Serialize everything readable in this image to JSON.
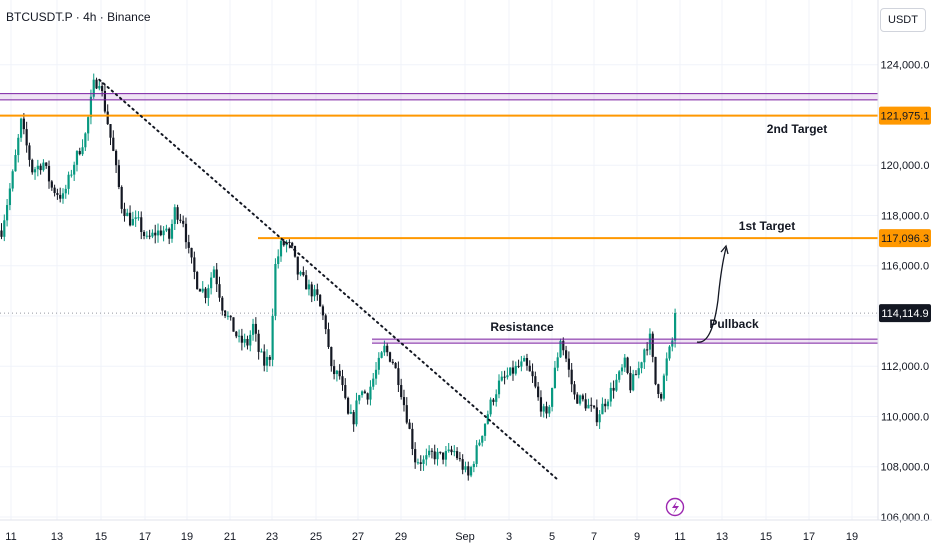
{
  "symbol": "BTCUSDT.P · 4h · Binance",
  "currency": "USDT",
  "chart_data": {
    "type": "candlestick",
    "price_axis": {
      "min": 106000,
      "max": 125500,
      "ticks": [
        106000,
        108000,
        110000,
        112000,
        114000,
        116000,
        118000,
        120000,
        122000,
        124000
      ],
      "tick_labels": [
        "106,000.0",
        "108,000.0",
        "110,000.0",
        "112,000.0",
        "114,000.0",
        "116,000.0",
        "118,000.0",
        "120,000.0",
        "122,000.0",
        "124,000.0"
      ]
    },
    "date_axis": {
      "labels": [
        "11",
        "13",
        "15",
        "17",
        "19",
        "21",
        "23",
        "25",
        "27",
        "29",
        "Sep",
        "3",
        "5",
        "7",
        "9",
        "11",
        "13",
        "15",
        "17",
        "19"
      ]
    },
    "candle_count": 220,
    "path": [
      [
        0,
        117400
      ],
      [
        4,
        119600
      ],
      [
        7,
        121700
      ],
      [
        11,
        119800
      ],
      [
        15,
        120100
      ],
      [
        18,
        119100
      ],
      [
        22,
        118700
      ],
      [
        26,
        120100
      ],
      [
        30,
        121200
      ],
      [
        33,
        123200
      ],
      [
        35,
        123400
      ],
      [
        38,
        121700
      ],
      [
        40,
        120500
      ],
      [
        43,
        118400
      ],
      [
        46,
        117800
      ],
      [
        49,
        117700
      ],
      [
        52,
        117000
      ],
      [
        55,
        117300
      ],
      [
        58,
        117400
      ],
      [
        60,
        117100
      ],
      [
        62,
        118200
      ],
      [
        65,
        117800
      ],
      [
        67,
        116500
      ],
      [
        70,
        115300
      ],
      [
        73,
        114900
      ],
      [
        76,
        115900
      ],
      [
        79,
        114400
      ],
      [
        82,
        113700
      ],
      [
        85,
        113000
      ],
      [
        88,
        112900
      ],
      [
        90,
        113600
      ],
      [
        92,
        112600
      ],
      [
        94,
        112100
      ],
      [
        96,
        112400
      ],
      [
        98,
        116000
      ],
      [
        100,
        116800
      ],
      [
        102,
        116900
      ],
      [
        104,
        116600
      ],
      [
        106,
        115700
      ],
      [
        110,
        115100
      ],
      [
        113,
        114700
      ],
      [
        116,
        113600
      ],
      [
        118,
        111800
      ],
      [
        121,
        111600
      ],
      [
        124,
        110000
      ],
      [
        126,
        109900
      ],
      [
        128,
        111000
      ],
      [
        131,
        110900
      ],
      [
        134,
        111800
      ],
      [
        137,
        112700
      ],
      [
        140,
        112200
      ],
      [
        142,
        111500
      ],
      [
        145,
        110000
      ],
      [
        148,
        108300
      ],
      [
        151,
        108200
      ],
      [
        154,
        108500
      ],
      [
        157,
        108400
      ],
      [
        160,
        108500
      ],
      [
        162,
        108600
      ],
      [
        164,
        108200
      ],
      [
        167,
        107600
      ],
      [
        169,
        108300
      ],
      [
        172,
        109400
      ],
      [
        175,
        110500
      ],
      [
        178,
        111300
      ],
      [
        181,
        111600
      ],
      [
        184,
        111900
      ],
      [
        187,
        112100
      ],
      [
        190,
        111500
      ],
      [
        192,
        110700
      ],
      [
        195,
        109900
      ],
      [
        198,
        111800
      ],
      [
        200,
        113100
      ],
      [
        202,
        112300
      ],
      [
        205,
        110800
      ],
      [
        208,
        110600
      ],
      [
        210,
        110400
      ],
      [
        213,
        110000
      ],
      [
        215,
        110400
      ],
      [
        218,
        111000
      ],
      [
        221,
        111600
      ],
      [
        223,
        112100
      ],
      [
        225,
        111200
      ],
      [
        228,
        111900
      ],
      [
        230,
        112700
      ],
      [
        232,
        113100
      ],
      [
        234,
        111300
      ],
      [
        236,
        110900
      ],
      [
        238,
        112200
      ],
      [
        240,
        113000
      ],
      [
        241,
        114114.9
      ]
    ],
    "last_price": 114114.9,
    "last_price_label": "114,114.9",
    "horizontal_levels": [
      {
        "name": "2nd Target",
        "price": 121975.1,
        "label": "121,975.1",
        "color": "#ff9800"
      },
      {
        "name": "1st Target",
        "price": 117096.3,
        "label": "117,096.3",
        "color": "#ff9800"
      }
    ],
    "zones": [
      {
        "name": "",
        "price_low": 122600,
        "price_high": 122850,
        "color": "#7b1fa2"
      },
      {
        "name": "Resistance",
        "price_low": 112920,
        "price_high": 113080,
        "color": "#7b1fa2"
      }
    ],
    "annotations": [
      "2nd Target",
      "1st Target",
      "Resistance",
      "Pullback"
    ],
    "trendline": {
      "style": "dotted",
      "from": [
        35,
        123400
      ],
      "to": [
        221,
        107600
      ]
    },
    "colors": {
      "up": "#089981",
      "down": "#131722",
      "grid": "#f0f3fa",
      "level": "#ff9800",
      "zone": "#7b1fa2"
    }
  }
}
